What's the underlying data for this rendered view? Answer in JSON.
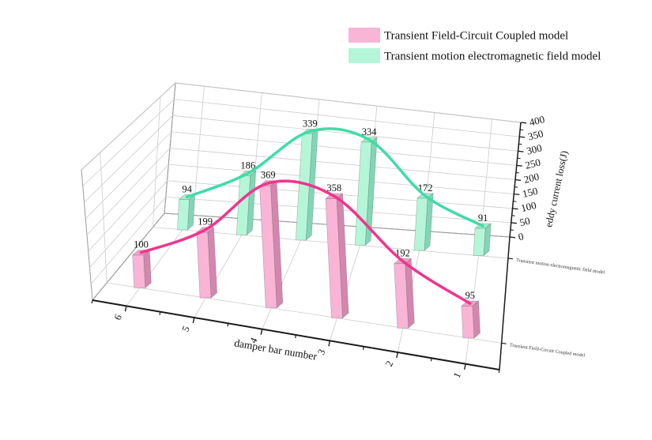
{
  "chart_data": {
    "type": "bar",
    "is_3d": true,
    "title": "",
    "xlabel": "damper bar number",
    "zlabel": "eddy current loss(J)",
    "categories": [
      "6",
      "5",
      "4",
      "3",
      "2",
      "1"
    ],
    "zlim": [
      0,
      400
    ],
    "z_tick_step": 50,
    "z_ticks": [
      "0",
      "50",
      "100",
      "150",
      "200",
      "250",
      "300",
      "350",
      "400"
    ],
    "grid": true,
    "legend_position": "top-right",
    "series": [
      {
        "name": "Transient Field-Circuit Coupled model",
        "row": "front",
        "values": [
          100,
          199,
          369,
          358,
          192,
          95
        ],
        "bar_color": "#F9B4D6",
        "bar_side_color": "#D387AE",
        "bar_top_color": "#EFA2C8",
        "curve_color": "#F2348E"
      },
      {
        "name": "Transient motion electromagnetic field model",
        "row": "back",
        "values": [
          94,
          186,
          339,
          334,
          172,
          91
        ],
        "bar_color": "#B5F6D9",
        "bar_side_color": "#82D6B6",
        "bar_top_color": "#A3EDCB",
        "curve_color": "#3FDCA7"
      }
    ],
    "depth_axis_tick_labels": [
      "Transient Field-Circuit Coupled model",
      "Transient motion electromagnetic field model"
    ],
    "colors": {
      "axis": "#1a1a1a",
      "grid": "#cccccc",
      "wall_edge": "#9a9a9a",
      "label_text": "#111111",
      "background": "#ffffff"
    }
  }
}
